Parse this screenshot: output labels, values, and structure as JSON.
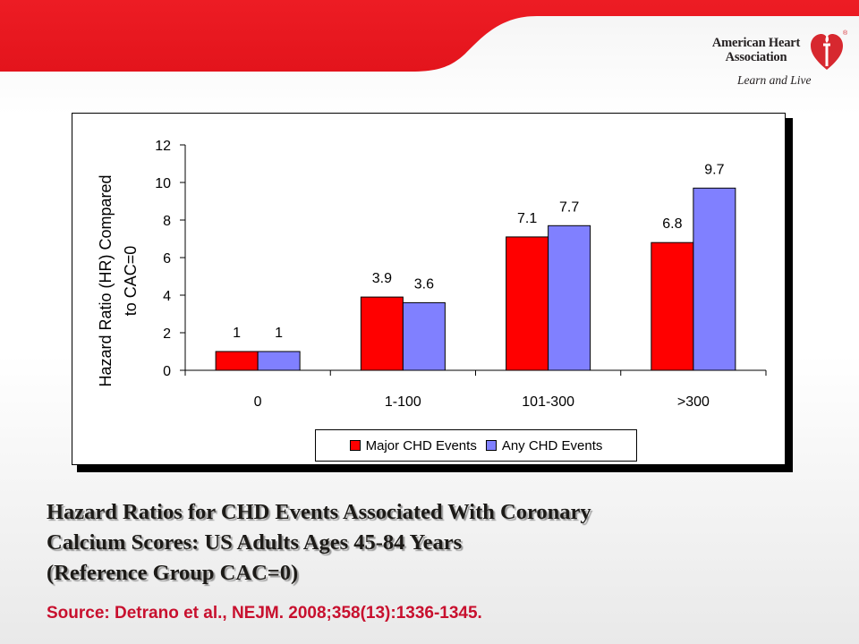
{
  "header": {
    "brand_line1": "American Heart",
    "brand_line2": "Association",
    "registered": "®",
    "tagline": "Learn and Live",
    "banner_color": "#ed1c24"
  },
  "chart_data": {
    "type": "bar",
    "categories": [
      "0",
      "1-100",
      "101-300",
      ">300"
    ],
    "series": [
      {
        "name": "Major CHD Events",
        "values": [
          1,
          3.9,
          7.1,
          6.8
        ],
        "labels": [
          "1",
          "3.9",
          "7.1",
          "6.8"
        ],
        "color": "#ff0000"
      },
      {
        "name": "Any CHD Events",
        "values": [
          1,
          3.6,
          7.7,
          9.7
        ],
        "labels": [
          "1",
          "3.6",
          "7.7",
          "9.7"
        ],
        "color": "#8080ff"
      }
    ],
    "ylabel": "Hazard Ratio (HR) Compared to CAC=0",
    "ylabel_line1": "Hazard Ratio (HR) Compared",
    "ylabel_line2": "to CAC=0",
    "xlabel": "",
    "ylim": [
      0,
      12
    ],
    "yticks": [
      0,
      2,
      4,
      6,
      8,
      10,
      12
    ],
    "grid": false,
    "legend": "bottom"
  },
  "caption": {
    "line1": "Hazard Ratios for CHD Events Associated With Coronary",
    "line2": "Calcium Scores: US Adults Ages 45-84 Years",
    "line3": "(Reference Group CAC=0)"
  },
  "source": "Source: Detrano et al., NEJM. 2008;358(13):1336-1345."
}
